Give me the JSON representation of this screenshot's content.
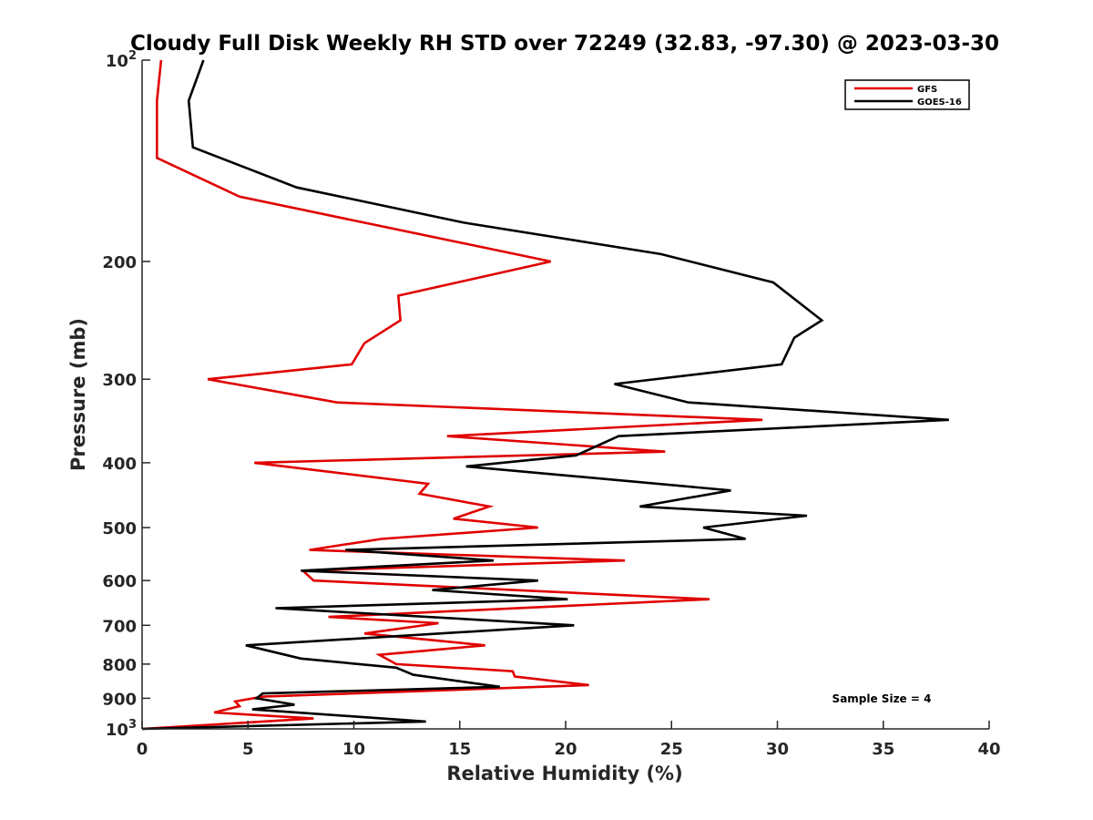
{
  "chart_data": {
    "type": "line",
    "title": "Cloudy Full Disk Weekly RH STD over 72249 (32.83, -97.30) @ 2023-03-30",
    "xlabel": "Relative Humidity (%)",
    "ylabel": "Pressure (mb)",
    "xlim": [
      0,
      40
    ],
    "ylim": [
      100,
      1000
    ],
    "y_scale": "log",
    "y_reversed": true,
    "x_ticks": [
      0,
      5,
      10,
      15,
      20,
      25,
      30,
      35,
      40
    ],
    "x_tick_labels": [
      "0",
      "5",
      "10",
      "15",
      "20",
      "25",
      "30",
      "35",
      "40"
    ],
    "y_ticks": [
      {
        "value": 100,
        "base": "10",
        "exp": "2"
      },
      {
        "value": 200,
        "label": "200"
      },
      {
        "value": 300,
        "label": "300"
      },
      {
        "value": 400,
        "label": "400"
      },
      {
        "value": 500,
        "label": "500"
      },
      {
        "value": 600,
        "label": "600"
      },
      {
        "value": 700,
        "label": "700"
      },
      {
        "value": 800,
        "label": "800"
      },
      {
        "value": 900,
        "label": "900"
      },
      {
        "value": 1000,
        "base": "10",
        "exp": "3"
      }
    ],
    "grid": false,
    "legend_position": "top-right",
    "annotation": "Sample Size = 4",
    "series": [
      {
        "name": "GFS",
        "color": "#e00000",
        "x": [
          0.9,
          0.7,
          0.7,
          0.7,
          4.6,
          19.3,
          12.1,
          12.2,
          10.5,
          9.9,
          3.1,
          9.2,
          29.3,
          14.4,
          24.7,
          5.3,
          13.5,
          13.1,
          16.4,
          14.7,
          18.7,
          11.3,
          7.9,
          22.8,
          7.6,
          8.1,
          26.8,
          8.8,
          14,
          10.5,
          16.2,
          11.2,
          12,
          17.5,
          17.6,
          21.1,
          5.7,
          4.4,
          4.6,
          3.4,
          8.1,
          0
        ],
        "y": [
          100,
          115,
          130,
          140,
          160,
          200,
          225,
          245,
          265,
          285,
          300,
          325,
          345,
          365,
          385,
          400,
          430,
          445,
          465,
          485,
          500,
          520,
          540,
          560,
          580,
          600,
          640,
          680,
          695,
          720,
          750,
          775,
          800,
          820,
          835,
          860,
          895,
          910,
          925,
          945,
          965,
          1000
        ]
      },
      {
        "name": "GOES-16",
        "color": "#000000",
        "x": [
          2.9,
          2.2,
          2.4,
          7.3,
          15.2,
          24.5,
          29.8,
          32.1,
          30.8,
          30.2,
          22.3,
          25.8,
          38.1,
          22.5,
          20.5,
          15.3,
          27.8,
          23.5,
          31.4,
          26.5,
          28.5,
          9.6,
          16.6,
          7.5,
          18.7,
          13.7,
          20.1,
          6.3,
          20.4,
          4.9,
          7.5,
          12,
          12.8,
          16.9,
          5.7,
          5.4,
          7.2,
          5.2,
          13.4,
          0
        ],
        "y": [
          100,
          115,
          135,
          155,
          175,
          195,
          215,
          245,
          260,
          285,
          305,
          325,
          345,
          365,
          390,
          405,
          440,
          465,
          480,
          500,
          520,
          540,
          560,
          580,
          600,
          620,
          640,
          660,
          700,
          750,
          785,
          810,
          830,
          865,
          885,
          900,
          920,
          935,
          975,
          1000
        ]
      }
    ]
  }
}
